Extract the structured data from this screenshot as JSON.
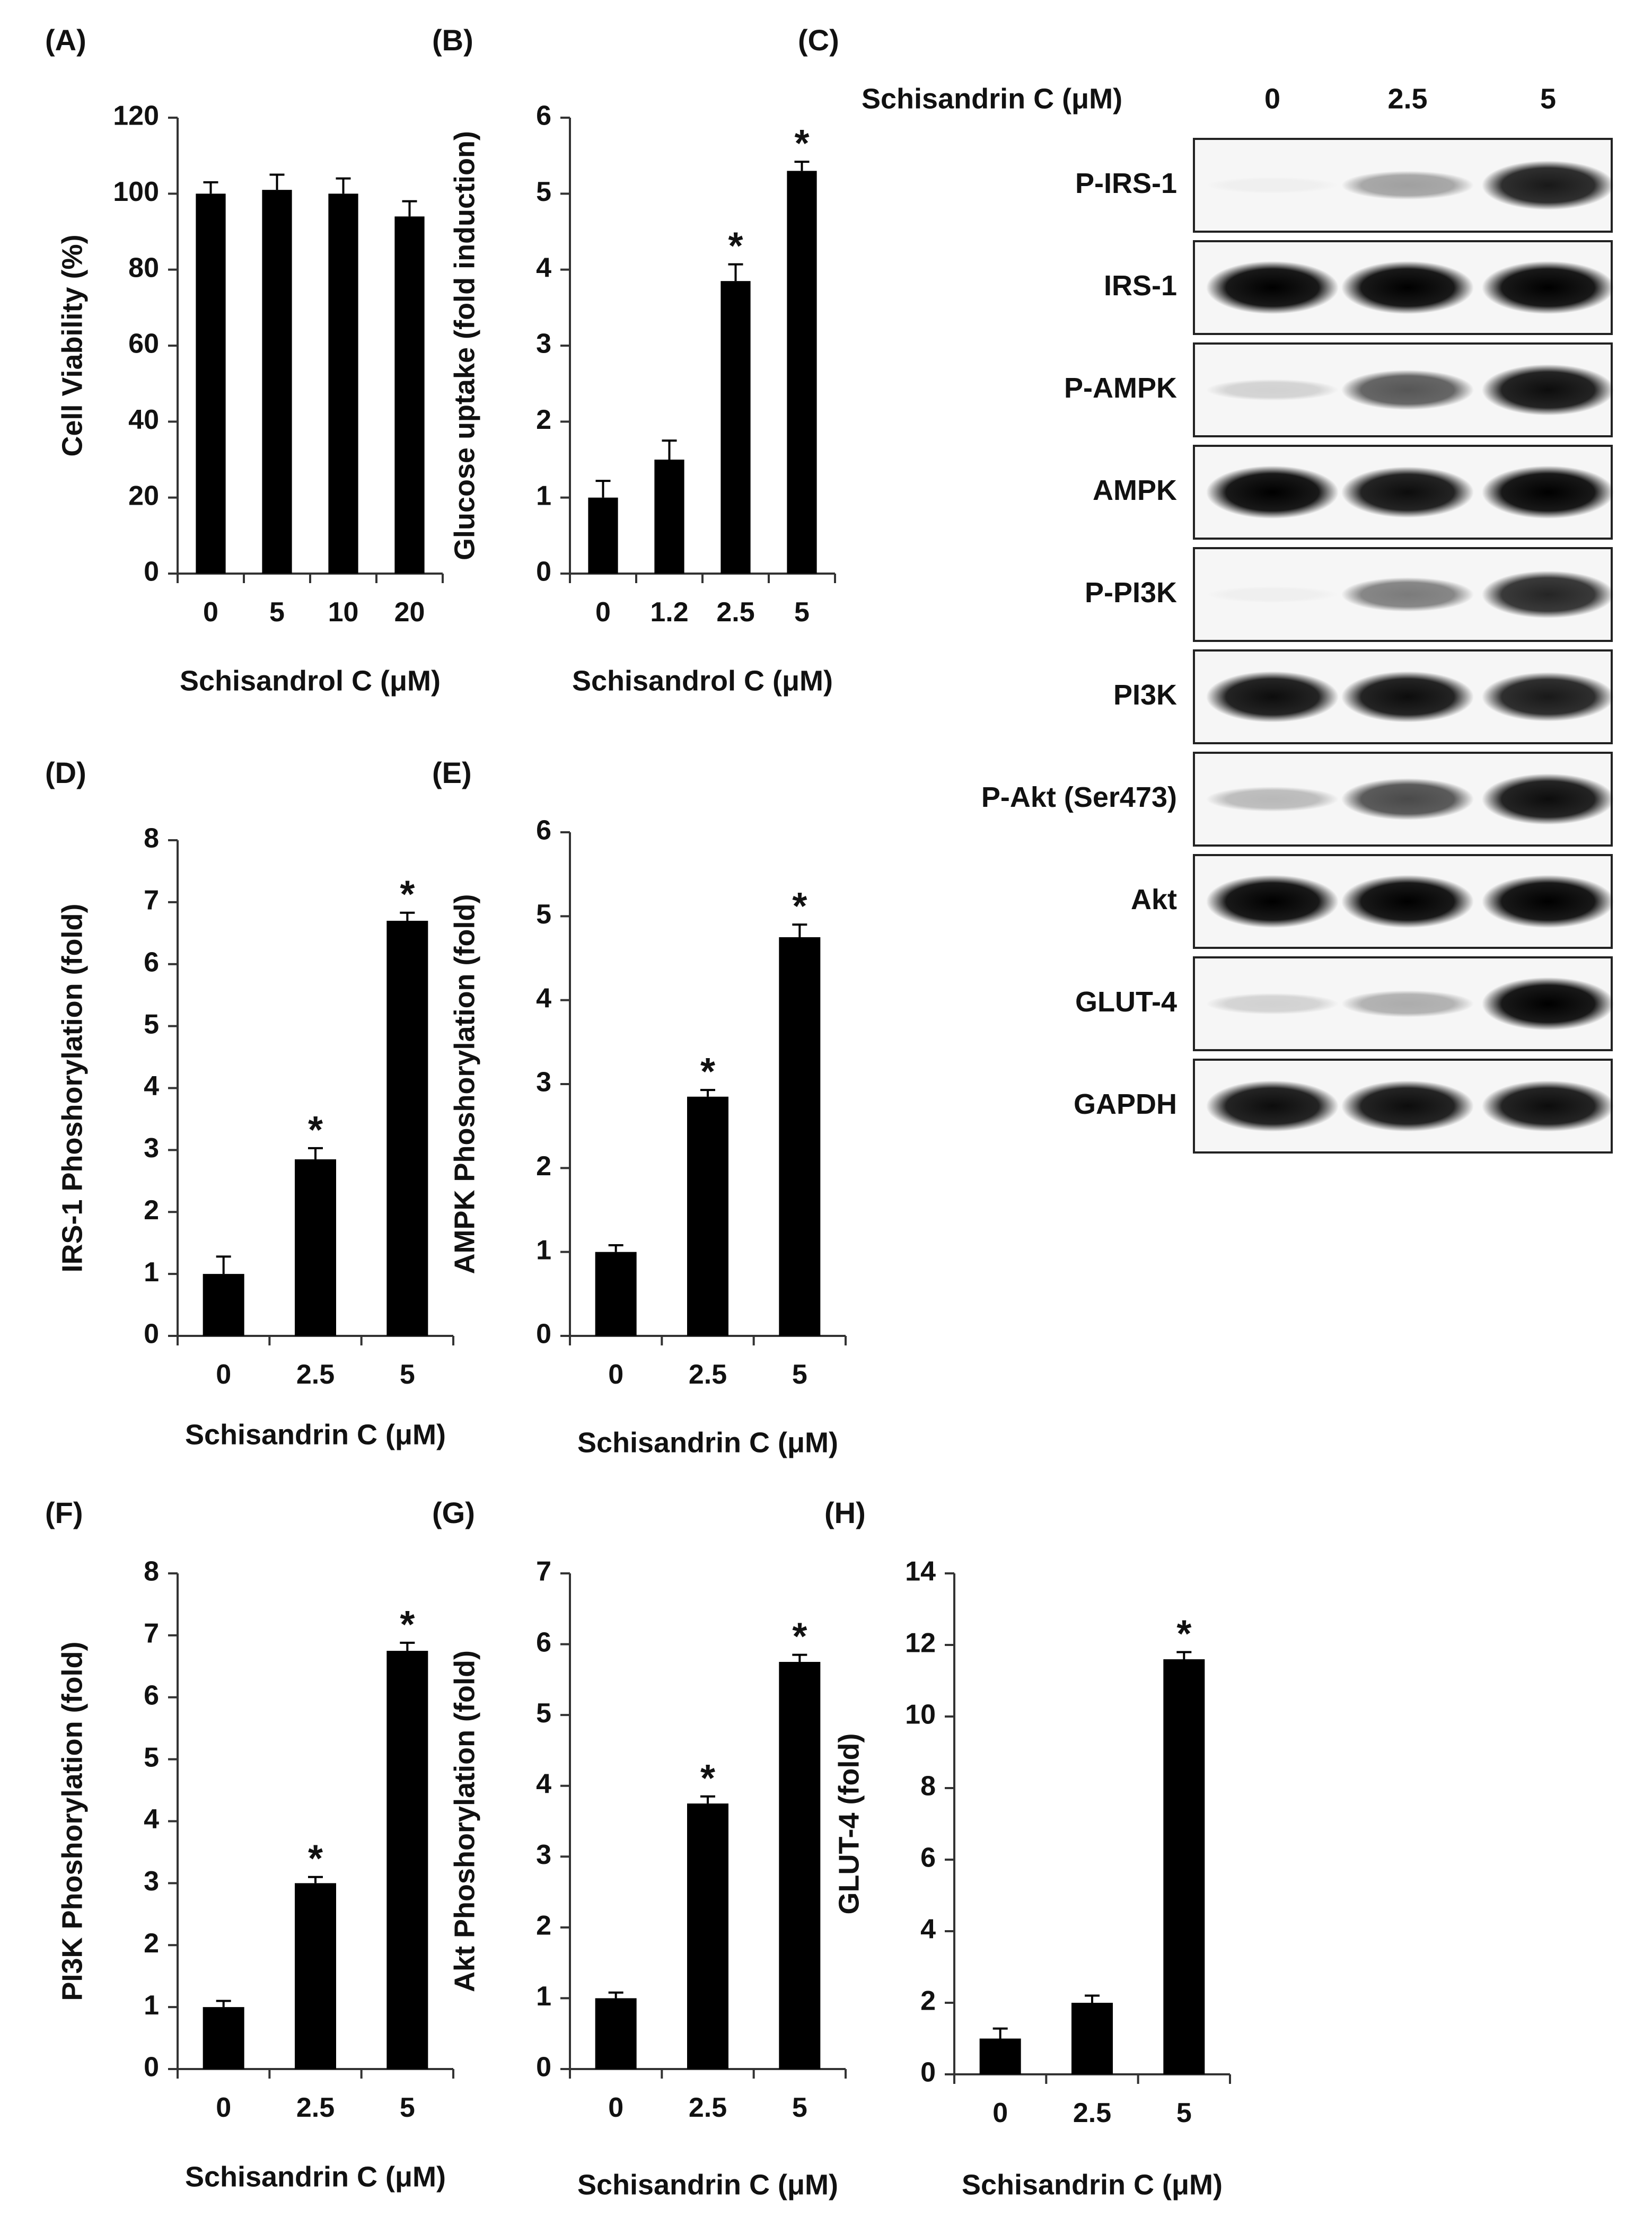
{
  "chart_data": [
    {
      "panel": "(A)",
      "type": "bar",
      "categories": [
        "0",
        "5",
        "10",
        "20"
      ],
      "values": [
        100,
        101,
        100,
        94
      ],
      "errors": [
        3,
        4,
        4,
        4
      ],
      "significant": [
        false,
        false,
        false,
        false
      ],
      "ylabel": "Cell Viability (%)",
      "xlabel": "Schisandrol C (μM)",
      "ylim": [
        0,
        120
      ],
      "yticks": [
        "0",
        "20",
        "40",
        "60",
        "80",
        "100",
        "120"
      ],
      "star": "*"
    },
    {
      "panel": "(B)",
      "type": "bar",
      "categories": [
        "0",
        "1.2",
        "2.5",
        "5"
      ],
      "values": [
        1.0,
        1.5,
        3.85,
        5.3
      ],
      "errors": [
        0.22,
        0.25,
        0.22,
        0.12
      ],
      "significant": [
        false,
        false,
        true,
        true
      ],
      "ylabel": "Glucose uptake (fold induction)",
      "xlabel": "Schisandrol C (μM)",
      "ylim": [
        0,
        6
      ],
      "yticks": [
        "0",
        "1",
        "2",
        "3",
        "4",
        "5",
        "6"
      ],
      "star": "*"
    },
    {
      "panel": "(D)",
      "type": "bar",
      "categories": [
        "0",
        "2.5",
        "5"
      ],
      "values": [
        1.0,
        2.85,
        6.7
      ],
      "errors": [
        0.28,
        0.18,
        0.13
      ],
      "significant": [
        false,
        true,
        true
      ],
      "ylabel": "IRS-1 Phoshorylation (fold)",
      "xlabel": "Schisandrin C (μM)",
      "ylim": [
        0,
        8
      ],
      "yticks": [
        "0",
        "1",
        "2",
        "3",
        "4",
        "5",
        "6",
        "7",
        "8"
      ],
      "star": "*"
    },
    {
      "panel": "(E)",
      "type": "bar",
      "categories": [
        "0",
        "2.5",
        "5"
      ],
      "values": [
        1.0,
        2.85,
        4.75
      ],
      "errors": [
        0.08,
        0.08,
        0.15
      ],
      "significant": [
        false,
        true,
        true
      ],
      "ylabel": "AMPK Phoshorylation (fold)",
      "xlabel": "Schisandrin C (μM)",
      "ylim": [
        0,
        6
      ],
      "yticks": [
        "0",
        "1",
        "2",
        "3",
        "4",
        "5",
        "6"
      ],
      "star": "*"
    },
    {
      "panel": "(F)",
      "type": "bar",
      "categories": [
        "0",
        "2.5",
        "5"
      ],
      "values": [
        1.0,
        3.0,
        6.75
      ],
      "errors": [
        0.1,
        0.1,
        0.13
      ],
      "significant": [
        false,
        true,
        true
      ],
      "ylabel": "PI3K Phoshorylation (fold)",
      "xlabel": "Schisandrin C (μM)",
      "ylim": [
        0,
        8
      ],
      "yticks": [
        "0",
        "1",
        "2",
        "3",
        "4",
        "5",
        "6",
        "7",
        "8"
      ],
      "star": "*"
    },
    {
      "panel": "(G)",
      "type": "bar",
      "categories": [
        "0",
        "2.5",
        "5"
      ],
      "values": [
        1.0,
        3.75,
        5.75
      ],
      "errors": [
        0.08,
        0.1,
        0.1
      ],
      "significant": [
        false,
        true,
        true
      ],
      "ylabel": "Akt Phoshorylation (fold)",
      "xlabel": "Schisandrin C (μM)",
      "ylim": [
        0,
        7
      ],
      "yticks": [
        "0",
        "1",
        "2",
        "3",
        "4",
        "5",
        "6",
        "7"
      ],
      "star": "*"
    },
    {
      "panel": "(H)",
      "type": "bar",
      "categories": [
        "0",
        "2.5",
        "5"
      ],
      "values": [
        1.0,
        2.0,
        11.6
      ],
      "errors": [
        0.28,
        0.2,
        0.2
      ],
      "significant": [
        false,
        false,
        true
      ],
      "ylabel": "GLUT-4 (fold)",
      "xlabel": "Schisandrin C (μM)",
      "ylim": [
        0,
        14
      ],
      "yticks": [
        "0",
        "2",
        "4",
        "6",
        "8",
        "10",
        "12",
        "14"
      ],
      "star": "*"
    }
  ],
  "blot": {
    "panel": "(C)",
    "treatment_label": "Schisandrin C (μM)",
    "lanes": [
      "0",
      "2.5",
      "5"
    ],
    "bands": [
      {
        "label": "P-IRS-1",
        "intensity": [
          0.02,
          0.35,
          0.9
        ]
      },
      {
        "label": "IRS-1",
        "intensity": [
          1.0,
          1.0,
          1.0
        ]
      },
      {
        "label": "P-AMPK",
        "intensity": [
          0.15,
          0.65,
          0.95
        ]
      },
      {
        "label": "AMPK",
        "intensity": [
          1.0,
          0.95,
          1.0
        ]
      },
      {
        "label": "P-PI3K",
        "intensity": [
          0.02,
          0.5,
          0.85
        ]
      },
      {
        "label": "PI3K",
        "intensity": [
          0.95,
          0.95,
          0.9
        ]
      },
      {
        "label": "P-Akt (Ser473)",
        "intensity": [
          0.25,
          0.7,
          0.95
        ]
      },
      {
        "label": "Akt",
        "intensity": [
          1.0,
          1.0,
          1.0
        ]
      },
      {
        "label": "GLUT-4",
        "intensity": [
          0.15,
          0.3,
          1.0
        ]
      },
      {
        "label": "GAPDH",
        "intensity": [
          0.95,
          0.95,
          0.95
        ]
      }
    ]
  }
}
